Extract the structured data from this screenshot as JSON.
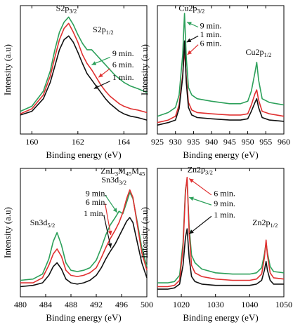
{
  "chart_data": [
    {
      "type": "line",
      "id": "S2p",
      "xlabel": "Binding energy (eV)",
      "ylabel": "Intensity (a.u)",
      "xlim": [
        159.5,
        165.0
      ],
      "ylim": [
        0,
        1
      ],
      "xticks": [
        160,
        162,
        164
      ],
      "series": [
        {
          "label": "9 min.",
          "color": "#2ca05a",
          "x": [
            159.5,
            160.0,
            160.5,
            160.8,
            161.0,
            161.2,
            161.4,
            161.6,
            161.8,
            162.0,
            162.2,
            162.4,
            162.6,
            162.8,
            163.0,
            163.2,
            163.4,
            163.6,
            163.8,
            164.0,
            164.3,
            164.6,
            165.0
          ],
          "y": [
            0.17,
            0.21,
            0.33,
            0.49,
            0.66,
            0.8,
            0.88,
            0.92,
            0.86,
            0.78,
            0.71,
            0.66,
            0.66,
            0.62,
            0.58,
            0.54,
            0.5,
            0.46,
            0.43,
            0.4,
            0.37,
            0.35,
            0.32
          ]
        },
        {
          "label": "6 min.",
          "color": "#e03030",
          "x": [
            159.5,
            160.0,
            160.5,
            160.8,
            161.0,
            161.2,
            161.4,
            161.6,
            161.8,
            162.0,
            162.2,
            162.4,
            162.6,
            162.8,
            163.0,
            163.2,
            163.4,
            163.6,
            163.8,
            164.0,
            164.3,
            164.6,
            165.0
          ],
          "y": [
            0.15,
            0.19,
            0.3,
            0.45,
            0.6,
            0.74,
            0.83,
            0.87,
            0.8,
            0.72,
            0.62,
            0.55,
            0.5,
            0.44,
            0.38,
            0.33,
            0.29,
            0.26,
            0.23,
            0.21,
            0.19,
            0.18,
            0.16
          ]
        },
        {
          "label": "1 min.",
          "color": "#111111",
          "x": [
            159.5,
            160.0,
            160.5,
            160.8,
            161.0,
            161.2,
            161.4,
            161.6,
            161.8,
            162.0,
            162.2,
            162.4,
            162.6,
            162.8,
            163.0,
            163.2,
            163.4,
            163.6,
            163.8,
            164.0,
            164.3,
            164.6,
            165.0
          ],
          "y": [
            0.14,
            0.17,
            0.27,
            0.4,
            0.53,
            0.66,
            0.74,
            0.77,
            0.72,
            0.64,
            0.55,
            0.47,
            0.42,
            0.37,
            0.32,
            0.27,
            0.23,
            0.2,
            0.17,
            0.15,
            0.13,
            0.12,
            0.1
          ]
        }
      ],
      "annotations": [
        {
          "text": "S2p",
          "sub": "3/2",
          "x": 161.5,
          "y": 0.97,
          "anchor": "middle"
        },
        {
          "text": "S2p",
          "sub": "1/2",
          "x": 163.1,
          "y": 0.8,
          "anchor": "middle"
        },
        {
          "text": "9 min.",
          "x": 163.5,
          "y": 0.61
        },
        {
          "text": "6 min.",
          "x": 163.5,
          "y": 0.52
        },
        {
          "text": "1 min.",
          "x": 163.5,
          "y": 0.42
        }
      ],
      "arrows": [
        {
          "color": "#2ca05a",
          "from": [
            163.4,
            0.6
          ],
          "to": [
            162.6,
            0.54
          ]
        },
        {
          "color": "#e03030",
          "from": [
            163.4,
            0.51
          ],
          "to": [
            162.9,
            0.44
          ]
        },
        {
          "color": "#111111",
          "from": [
            163.4,
            0.41
          ],
          "to": [
            162.7,
            0.35
          ]
        }
      ]
    },
    {
      "type": "line",
      "id": "Cu2p",
      "xlabel": "Binding energy (eV)",
      "ylabel": "Intensity (a.u)",
      "xlim": [
        925,
        960
      ],
      "ylim": [
        0,
        1
      ],
      "xticks": [
        925,
        930,
        935,
        940,
        945,
        950,
        955,
        960
      ],
      "series": [
        {
          "label": "9 min.",
          "color": "#2ca05a",
          "x": [
            925,
            928,
            930,
            931,
            932,
            932.5,
            933,
            933.6,
            934.5,
            936,
            940,
            945,
            948,
            950,
            951,
            952,
            952.5,
            953,
            954,
            956,
            960
          ],
          "y": [
            0.13,
            0.16,
            0.2,
            0.3,
            0.62,
            0.95,
            0.6,
            0.36,
            0.3,
            0.27,
            0.25,
            0.23,
            0.23,
            0.25,
            0.33,
            0.48,
            0.56,
            0.42,
            0.27,
            0.24,
            0.22
          ]
        },
        {
          "label": "6 min.",
          "color": "#e03030",
          "x": [
            925,
            928,
            930,
            931,
            932,
            932.5,
            933,
            933.6,
            934.5,
            936,
            940,
            945,
            948,
            950,
            951,
            952,
            952.5,
            953,
            954,
            956,
            960
          ],
          "y": [
            0.08,
            0.1,
            0.13,
            0.22,
            0.46,
            0.66,
            0.44,
            0.24,
            0.18,
            0.16,
            0.15,
            0.14,
            0.14,
            0.15,
            0.22,
            0.31,
            0.34,
            0.26,
            0.17,
            0.15,
            0.13
          ]
        },
        {
          "label": "1 min.",
          "color": "#111111",
          "x": [
            925,
            928,
            930,
            931,
            932,
            932.5,
            933,
            933.6,
            934.5,
            936,
            940,
            945,
            948,
            950,
            951,
            952,
            952.5,
            953,
            954,
            956,
            960
          ],
          "y": [
            0.06,
            0.08,
            0.1,
            0.19,
            0.44,
            0.73,
            0.4,
            0.2,
            0.14,
            0.12,
            0.11,
            0.1,
            0.1,
            0.11,
            0.17,
            0.24,
            0.27,
            0.2,
            0.12,
            0.1,
            0.09
          ]
        }
      ],
      "annotations": [
        {
          "text": "Cu2p",
          "sub": "3/2",
          "x": 934.5,
          "y": 0.97,
          "anchor": "middle"
        },
        {
          "text": "9 min.",
          "x": 936.8,
          "y": 0.83
        },
        {
          "text": "1 min.",
          "x": 936.8,
          "y": 0.76
        },
        {
          "text": "6 min.",
          "x": 936.8,
          "y": 0.69
        },
        {
          "text": "Cu2p",
          "sub": "1/2",
          "x": 953,
          "y": 0.62,
          "anchor": "middle"
        }
      ],
      "arrows": [
        {
          "color": "#2ca05a",
          "from": [
            936.3,
            0.84
          ],
          "to": [
            933.2,
            0.88
          ]
        },
        {
          "color": "#111111",
          "from": [
            936.3,
            0.77
          ],
          "to": [
            933.1,
            0.72
          ]
        },
        {
          "color": "#e03030",
          "from": [
            936.3,
            0.7
          ],
          "to": [
            933.3,
            0.62
          ]
        }
      ]
    },
    {
      "type": "line",
      "id": "Sn3d",
      "xlabel": "Binding energy (eV)",
      "ylabel": "Intensity (a.u)",
      "xlim": [
        480,
        500
      ],
      "ylim": [
        0,
        1
      ],
      "xticks": [
        480,
        484,
        488,
        492,
        496,
        500
      ],
      "series": [
        {
          "label": "9 min.",
          "color": "#2ca05a",
          "x": [
            480,
            482,
            483.5,
            484.5,
            485.2,
            485.8,
            486.5,
            487.2,
            488,
            489,
            490,
            491,
            492,
            492.8,
            493.5,
            494.2,
            495,
            495.6,
            496.2,
            496.8,
            497.3,
            497.8,
            498.5,
            499.2,
            500
          ],
          "y": [
            0.12,
            0.13,
            0.17,
            0.29,
            0.43,
            0.5,
            0.4,
            0.26,
            0.2,
            0.19,
            0.2,
            0.22,
            0.28,
            0.38,
            0.48,
            0.56,
            0.62,
            0.67,
            0.65,
            0.74,
            0.82,
            0.77,
            0.58,
            0.38,
            0.23
          ]
        },
        {
          "label": "6 min.",
          "color": "#e03030",
          "x": [
            480,
            482,
            483.5,
            484.5,
            485.2,
            485.8,
            486.5,
            487.2,
            488,
            489,
            490,
            491,
            492,
            492.8,
            493.5,
            494.2,
            495,
            495.6,
            496.2,
            496.8,
            497.3,
            497.8,
            498.5,
            499.2,
            500
          ],
          "y": [
            0.1,
            0.1,
            0.14,
            0.24,
            0.33,
            0.37,
            0.31,
            0.2,
            0.16,
            0.15,
            0.16,
            0.18,
            0.22,
            0.3,
            0.38,
            0.45,
            0.52,
            0.58,
            0.66,
            0.77,
            0.84,
            0.78,
            0.56,
            0.34,
            0.2
          ]
        },
        {
          "label": "1 min.",
          "color": "#111111",
          "x": [
            480,
            482,
            483.5,
            484.5,
            485.2,
            485.8,
            486.5,
            487.2,
            488,
            489,
            490,
            491,
            492,
            492.8,
            493.5,
            494.2,
            495,
            495.6,
            496.2,
            496.8,
            497.3,
            497.8,
            498.5,
            499.2,
            500
          ],
          "y": [
            0.07,
            0.08,
            0.1,
            0.16,
            0.23,
            0.26,
            0.21,
            0.13,
            0.1,
            0.09,
            0.1,
            0.12,
            0.16,
            0.22,
            0.29,
            0.35,
            0.41,
            0.47,
            0.53,
            0.59,
            0.62,
            0.58,
            0.42,
            0.26,
            0.14
          ]
        }
      ],
      "annotations": [
        {
          "text": "ZnL",
          "parts": [
            [
              "ZnL",
              ""
            ],
            [
              "3",
              "sub"
            ],
            [
              "M",
              ""
            ],
            [
              "45",
              "sub"
            ],
            [
              "M",
              ""
            ],
            [
              "45",
              "sub"
            ]
          ],
          "x": 496.2,
          "y": 0.97,
          "anchor": "middle"
        },
        {
          "text": "Sn3d",
          "sub": "3/2",
          "x": 494.8,
          "y": 0.9,
          "anchor": "middle"
        },
        {
          "text": "9 min.",
          "x": 490.3,
          "y": 0.79
        },
        {
          "text": "6 min.",
          "x": 490.3,
          "y": 0.72
        },
        {
          "text": "1 min.",
          "x": 490.0,
          "y": 0.63
        },
        {
          "text": "Sn3d",
          "sub": "5/2",
          "x": 483.5,
          "y": 0.56,
          "anchor": "middle"
        }
      ],
      "arrows": [
        {
          "color": "#2ca05a",
          "from": [
            493.4,
            0.8
          ],
          "to": [
            495.3,
            0.66
          ]
        },
        {
          "color": "#e03030",
          "from": [
            493.4,
            0.73
          ],
          "to": [
            494.3,
            0.48
          ]
        },
        {
          "color": "#111111",
          "from": [
            493.2,
            0.64
          ],
          "to": [
            494.3,
            0.38
          ]
        }
      ]
    },
    {
      "type": "line",
      "id": "Zn2p",
      "xlabel": "Binding energy (eV)",
      "ylabel": "Intensity (a.u)",
      "xlim": [
        1013,
        1050
      ],
      "ylim": [
        0,
        1
      ],
      "xticks": [
        1020,
        1030,
        1040,
        1050
      ],
      "series": [
        {
          "label": "9 min.",
          "color": "#2ca05a",
          "x": [
            1013,
            1016,
            1018,
            1019.5,
            1020.5,
            1021.2,
            1021.7,
            1022.3,
            1023,
            1024,
            1026,
            1030,
            1035,
            1040,
            1042,
            1043.5,
            1044.3,
            1044.8,
            1045.2,
            1046,
            1047,
            1050
          ],
          "y": [
            0.1,
            0.1,
            0.11,
            0.16,
            0.42,
            0.84,
            0.92,
            0.55,
            0.32,
            0.26,
            0.21,
            0.18,
            0.17,
            0.17,
            0.18,
            0.22,
            0.33,
            0.42,
            0.34,
            0.23,
            0.19,
            0.18
          ]
        },
        {
          "label": "6 min.",
          "color": "#e03030",
          "x": [
            1013,
            1016,
            1018,
            1019.5,
            1020.5,
            1021.2,
            1021.7,
            1022.3,
            1023,
            1024,
            1026,
            1030,
            1035,
            1040,
            1042,
            1043.5,
            1044.3,
            1044.8,
            1045.2,
            1046,
            1047,
            1050
          ],
          "y": [
            0.07,
            0.07,
            0.08,
            0.12,
            0.38,
            0.82,
            0.94,
            0.5,
            0.24,
            0.18,
            0.15,
            0.13,
            0.12,
            0.12,
            0.13,
            0.17,
            0.3,
            0.44,
            0.32,
            0.18,
            0.14,
            0.13
          ]
        },
        {
          "label": "1 min.",
          "color": "#111111",
          "x": [
            1013,
            1016,
            1018,
            1019.5,
            1020.5,
            1021.2,
            1021.7,
            1022.3,
            1023,
            1024,
            1026,
            1030,
            1035,
            1040,
            1042,
            1043.5,
            1044.3,
            1044.8,
            1045.2,
            1046,
            1047,
            1050
          ],
          "y": [
            0.05,
            0.05,
            0.06,
            0.09,
            0.24,
            0.46,
            0.53,
            0.3,
            0.15,
            0.11,
            0.09,
            0.08,
            0.08,
            0.08,
            0.09,
            0.12,
            0.2,
            0.27,
            0.2,
            0.12,
            0.09,
            0.09
          ]
        }
      ],
      "annotations": [
        {
          "text": "Zn2p",
          "sub": "3/2",
          "x": 1025.5,
          "y": 0.98,
          "anchor": "middle"
        },
        {
          "text": "6 min.",
          "x": 1029.5,
          "y": 0.79
        },
        {
          "text": "9 min.",
          "x": 1029.5,
          "y": 0.71
        },
        {
          "text": "1 min.",
          "x": 1029.5,
          "y": 0.62
        },
        {
          "text": "Zn2p",
          "sub": "1/2",
          "x": 1044.5,
          "y": 0.56,
          "anchor": "middle"
        }
      ],
      "arrows": [
        {
          "color": "#e03030",
          "from": [
            1028.8,
            0.8
          ],
          "to": [
            1022.3,
            0.93
          ]
        },
        {
          "color": "#2ca05a",
          "from": [
            1028.8,
            0.72
          ],
          "to": [
            1022.3,
            0.78
          ]
        },
        {
          "color": "#111111",
          "from": [
            1028.8,
            0.63
          ],
          "to": [
            1022.3,
            0.49
          ]
        }
      ]
    }
  ]
}
